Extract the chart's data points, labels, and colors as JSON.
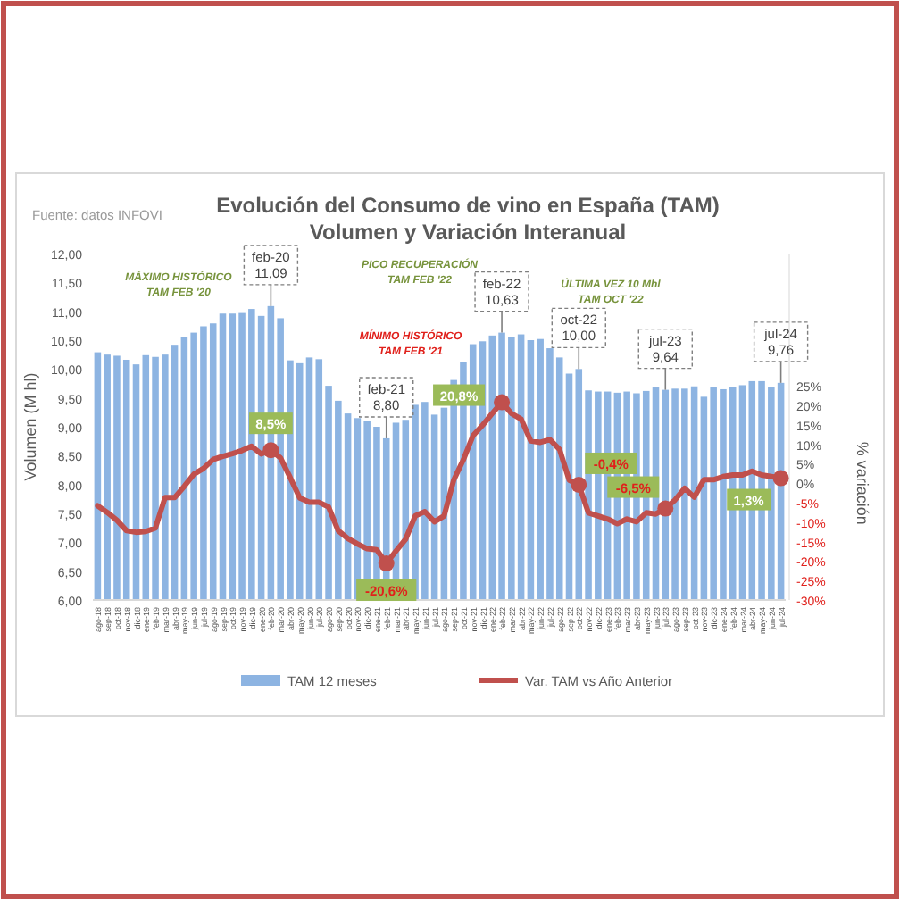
{
  "chart_data": {
    "type": "bar",
    "title": "Evolución del Consumo de vino en España (TAM)",
    "subtitle": "Volumen y Variación Interanual",
    "ylabel": "Volumen (M hl)",
    "y2label": "% variación",
    "categories": [
      "ago-18",
      "sep-18",
      "oct-18",
      "nov-18",
      "dic-18",
      "ene-19",
      "feb-19",
      "mar-19",
      "abr-19",
      "may-19",
      "jun-19",
      "jul-19",
      "ago-19",
      "sep-19",
      "oct-19",
      "nov-19",
      "dic-19",
      "ene-20",
      "feb-20",
      "mar-20",
      "abr-20",
      "may-20",
      "jun-20",
      "jul-20",
      "ago-20",
      "sep-20",
      "oct-20",
      "nov-20",
      "dic-20",
      "ene-21",
      "feb-21",
      "mar-21",
      "abr-21",
      "may-21",
      "jun-21",
      "jul-21",
      "ago-21",
      "sep-21",
      "oct-21",
      "nov-21",
      "dic-21",
      "ene-22",
      "feb-22",
      "mar-22",
      "abr-22",
      "may-22",
      "jun-22",
      "jul-22",
      "ago-22",
      "sep-22",
      "oct-22",
      "nov-22",
      "dic-22",
      "ene-23",
      "feb-23",
      "mar-23",
      "abr-23",
      "may-23",
      "jun-23",
      "jul-23",
      "ago-23",
      "sep-23",
      "oct-23",
      "nov-23",
      "dic-23",
      "ene-24",
      "feb-24",
      "mar-24",
      "abr-24",
      "may-24",
      "jun-24",
      "jul-24"
    ],
    "series": [
      {
        "name": "TAM 12 meses",
        "color": "#8db4e2",
        "values": [
          10.29,
          10.25,
          10.23,
          10.16,
          10.08,
          10.24,
          10.21,
          10.25,
          10.42,
          10.55,
          10.63,
          10.74,
          10.79,
          10.96,
          10.96,
          10.97,
          11.04,
          10.92,
          11.09,
          10.88,
          10.15,
          10.1,
          10.2,
          10.17,
          9.71,
          9.45,
          9.23,
          9.15,
          9.1,
          9.0,
          8.8,
          9.07,
          9.12,
          9.38,
          9.43,
          9.21,
          9.33,
          9.81,
          10.12,
          10.43,
          10.48,
          10.58,
          10.63,
          10.55,
          10.6,
          10.5,
          10.52,
          10.36,
          10.2,
          9.92,
          10.0,
          9.63,
          9.61,
          9.61,
          9.59,
          9.61,
          9.58,
          9.62,
          9.68,
          9.64,
          9.66,
          9.66,
          9.7,
          9.52,
          9.68,
          9.65,
          9.69,
          9.72,
          9.79,
          9.79,
          9.68,
          9.76
        ]
      },
      {
        "name": "Var. TAM vs Año Anterior",
        "type": "line",
        "axis": "y2",
        "color": "#c0504d",
        "values": [
          -5.8,
          -7.5,
          -9.5,
          -12.2,
          -12.6,
          -12.4,
          -11.5,
          -3.7,
          -3.7,
          -0.8,
          2.3,
          3.8,
          6.1,
          6.9,
          7.6,
          8.4,
          9.5,
          7.5,
          8.5,
          6.5,
          1.5,
          -3.8,
          -4.9,
          -4.9,
          -6.1,
          -12.2,
          -14.2,
          -15.6,
          -16.8,
          -17.1,
          -20.6,
          -17.4,
          -14.4,
          -8.4,
          -7.3,
          -9.9,
          -8.4,
          0.8,
          6,
          12.2,
          14.9,
          17.9,
          20.8,
          17.9,
          16.5,
          10.9,
          10.5,
          11.2,
          8.7,
          0.8,
          -0.4,
          -7.6,
          -8.4,
          -9.2,
          -10.4,
          -9.2,
          -9.9,
          -7.6,
          -7.9,
          -6.5,
          -4.3,
          -1.3,
          -3.6,
          0.9,
          0.9,
          1.7,
          2.1,
          2.1,
          3.1,
          2.1,
          1.7,
          1.3
        ],
        "value_labels": [
          null,
          null,
          null,
          null,
          null,
          null,
          null,
          null,
          null,
          null,
          null,
          null,
          null,
          null,
          null,
          null,
          null,
          null,
          "8,5%",
          null,
          null,
          null,
          null,
          null,
          null,
          null,
          null,
          null,
          null,
          null,
          "-20,6%",
          null,
          null,
          null,
          null,
          null,
          null,
          null,
          null,
          null,
          null,
          null,
          "20,8%",
          null,
          null,
          null,
          null,
          null,
          null,
          null,
          "-0,4%",
          null,
          null,
          null,
          null,
          null,
          null,
          null,
          null,
          "-6,5%",
          null,
          null,
          null,
          null,
          null,
          null,
          null,
          null,
          null,
          null,
          null,
          "1,3%"
        ]
      }
    ],
    "ylim": [
      6,
      12
    ],
    "yticks": [
      {
        "value": 6,
        "label": "6,00"
      },
      {
        "value": 6.5,
        "label": "6,50"
      },
      {
        "value": 7,
        "label": "7,00"
      },
      {
        "value": 7.5,
        "label": "7,50"
      },
      {
        "value": 8,
        "label": "8,00"
      },
      {
        "value": 8.5,
        "label": "8,50"
      },
      {
        "value": 9,
        "label": "9,00"
      },
      {
        "value": 9.5,
        "label": "9,50"
      },
      {
        "value": 10,
        "label": "10,00"
      },
      {
        "value": 10.5,
        "label": "10,50"
      },
      {
        "value": 11,
        "label": "11,00"
      },
      {
        "value": 11.5,
        "label": "11,50"
      },
      {
        "value": 12,
        "label": "12,00"
      }
    ],
    "y2lim": [
      -30,
      59
    ],
    "y2ticks": [
      {
        "value": -30,
        "label": "-30%"
      },
      {
        "value": -25,
        "label": "-25%"
      },
      {
        "value": -20,
        "label": "-20%"
      },
      {
        "value": -15,
        "label": "-15%"
      },
      {
        "value": -10,
        "label": "-10%"
      },
      {
        "value": -5,
        "label": "-5%"
      },
      {
        "value": 0,
        "label": "0%"
      },
      {
        "value": 5,
        "label": "5%"
      },
      {
        "value": 10,
        "label": "10%"
      },
      {
        "value": 15,
        "label": "15%"
      },
      {
        "value": 20,
        "label": "20%"
      },
      {
        "value": 25,
        "label": "25%"
      }
    ],
    "legend": "bottom",
    "annotations": [
      "Fuente: datos INFOVI",
      "MÁXIMO HISTÓRICO\nTAM FEB '20",
      "MÍNIMO HISTÓRICO\nTAM FEB '21",
      "PICO RECUPERACIÓN\nTAM FEB '22",
      "ÚLTIMA VEZ 10 Mhl\nTAM OCT '22",
      {
        "text": "feb-20\n11,09",
        "x": "feb-20",
        "y": 11.09
      },
      {
        "text": "feb-21\n8,80",
        "x": "feb-21",
        "y": 8.8
      },
      {
        "text": "feb-22\n10,63",
        "x": "feb-22",
        "y": 10.63
      },
      {
        "text": "oct-22\n10,00",
        "x": "oct-22",
        "y": 10
      },
      {
        "text": "jul-23\n9,64",
        "x": "jul-23",
        "y": 9.64
      },
      {
        "text": "jul-24\n9,76",
        "x": "jul-24",
        "y": 9.76
      }
    ]
  }
}
